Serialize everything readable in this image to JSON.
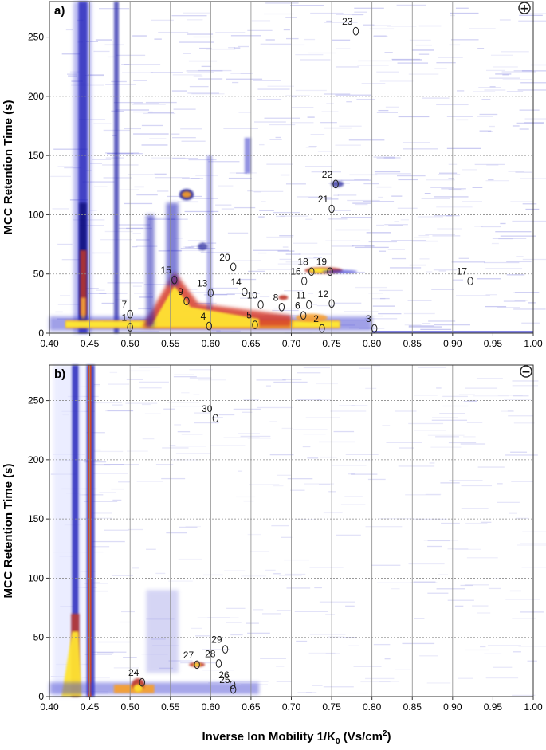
{
  "chart_data": [
    {
      "type": "heatmap",
      "panel_label": "a)",
      "polarity_symbol": "+",
      "xlabel": "",
      "ylabel": "MCC Retention Time (s)",
      "xlim": [
        0.4,
        1.0
      ],
      "ylim": [
        0,
        280
      ],
      "x_ticks": [
        "0.40",
        "0.45",
        "0.50",
        "0.55",
        "0.60",
        "0.65",
        "0.70",
        "0.75",
        "0.80",
        "0.85",
        "0.90",
        "0.95",
        "1.00"
      ],
      "y_ticks": [
        "0",
        "50",
        "100",
        "150",
        "200",
        "250"
      ],
      "grid": true,
      "peaks": [
        {
          "label": "1",
          "x": 0.5,
          "y": 5
        },
        {
          "label": "2",
          "x": 0.738,
          "y": 4
        },
        {
          "label": "3",
          "x": 0.803,
          "y": 4
        },
        {
          "label": "4",
          "x": 0.598,
          "y": 6
        },
        {
          "label": "5",
          "x": 0.655,
          "y": 7
        },
        {
          "label": "6",
          "x": 0.715,
          "y": 15
        },
        {
          "label": "7",
          "x": 0.5,
          "y": 16
        },
        {
          "label": "8",
          "x": 0.688,
          "y": 22
        },
        {
          "label": "9",
          "x": 0.57,
          "y": 27
        },
        {
          "label": "10",
          "x": 0.662,
          "y": 24
        },
        {
          "label": "11",
          "x": 0.722,
          "y": 24
        },
        {
          "label": "12",
          "x": 0.75,
          "y": 25
        },
        {
          "label": "13",
          "x": 0.6,
          "y": 34
        },
        {
          "label": "14",
          "x": 0.642,
          "y": 35
        },
        {
          "label": "15",
          "x": 0.555,
          "y": 45
        },
        {
          "label": "16",
          "x": 0.716,
          "y": 44
        },
        {
          "label": "17",
          "x": 0.922,
          "y": 44
        },
        {
          "label": "18",
          "x": 0.725,
          "y": 52
        },
        {
          "label": "19",
          "x": 0.748,
          "y": 52
        },
        {
          "label": "20",
          "x": 0.628,
          "y": 56
        },
        {
          "label": "21",
          "x": 0.75,
          "y": 105
        },
        {
          "label": "22",
          "x": 0.755,
          "y": 126
        },
        {
          "label": "23",
          "x": 0.78,
          "y": 255
        }
      ]
    },
    {
      "type": "heatmap",
      "panel_label": "b)",
      "polarity_symbol": "−",
      "xlabel": "Inverse Ion Mobility 1/K",
      "xlabel_sub": "0",
      "xlabel_units": " (Vs/cm",
      "xlabel_sup": "2",
      "xlabel_close": ")",
      "ylabel": "MCC Retention Time (s)",
      "xlim": [
        0.4,
        1.0
      ],
      "ylim": [
        0,
        280
      ],
      "x_ticks": [
        "0.40",
        "0.45",
        "0.50",
        "0.55",
        "0.60",
        "0.65",
        "0.70",
        "0.75",
        "0.80",
        "0.85",
        "0.90",
        "0.95",
        "1.00"
      ],
      "y_ticks": [
        "0",
        "50",
        "100",
        "150",
        "200",
        "250"
      ],
      "grid": true,
      "peaks": [
        {
          "label": "24",
          "x": 0.515,
          "y": 12
        },
        {
          "label": "25",
          "x": 0.628,
          "y": 6
        },
        {
          "label": "26",
          "x": 0.627,
          "y": 10
        },
        {
          "label": "27",
          "x": 0.583,
          "y": 27
        },
        {
          "label": "28",
          "x": 0.61,
          "y": 28
        },
        {
          "label": "29",
          "x": 0.618,
          "y": 40
        },
        {
          "label": "30",
          "x": 0.606,
          "y": 235
        }
      ]
    }
  ]
}
